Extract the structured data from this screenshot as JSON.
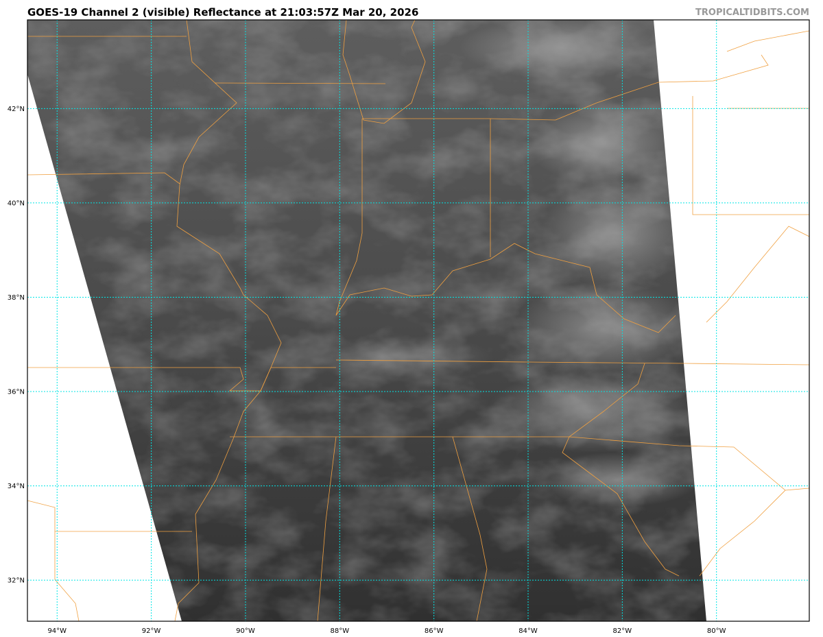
{
  "header": {
    "title": "GOES-19 Channel 2 (visible) Reflectance at 21:03:57Z Mar 20, 2026",
    "watermark": "TROPICALTIDBITS.COM"
  },
  "map": {
    "extent": {
      "lon": [
        -94.63,
        -78.03
      ],
      "lat": [
        31.13,
        43.88
      ]
    },
    "gridline_color": "#00e5e5",
    "border_color": "#f0a040",
    "latitudes": [
      {
        "value": 42,
        "label": "42°N"
      },
      {
        "value": 40,
        "label": "40°N"
      },
      {
        "value": 38,
        "label": "38°N"
      },
      {
        "value": 36,
        "label": "36°N"
      },
      {
        "value": 34,
        "label": "34°N"
      },
      {
        "value": 32,
        "label": "32°N"
      }
    ],
    "longitudes": [
      {
        "value": -94,
        "label": "94°W"
      },
      {
        "value": -92,
        "label": "92°W"
      },
      {
        "value": -90,
        "label": "90°W"
      },
      {
        "value": -88,
        "label": "88°W"
      },
      {
        "value": -86,
        "label": "86°W"
      },
      {
        "value": -84,
        "label": "84°W"
      },
      {
        "value": -82,
        "label": "82°W"
      },
      {
        "value": -80,
        "label": "80°W"
      }
    ]
  }
}
